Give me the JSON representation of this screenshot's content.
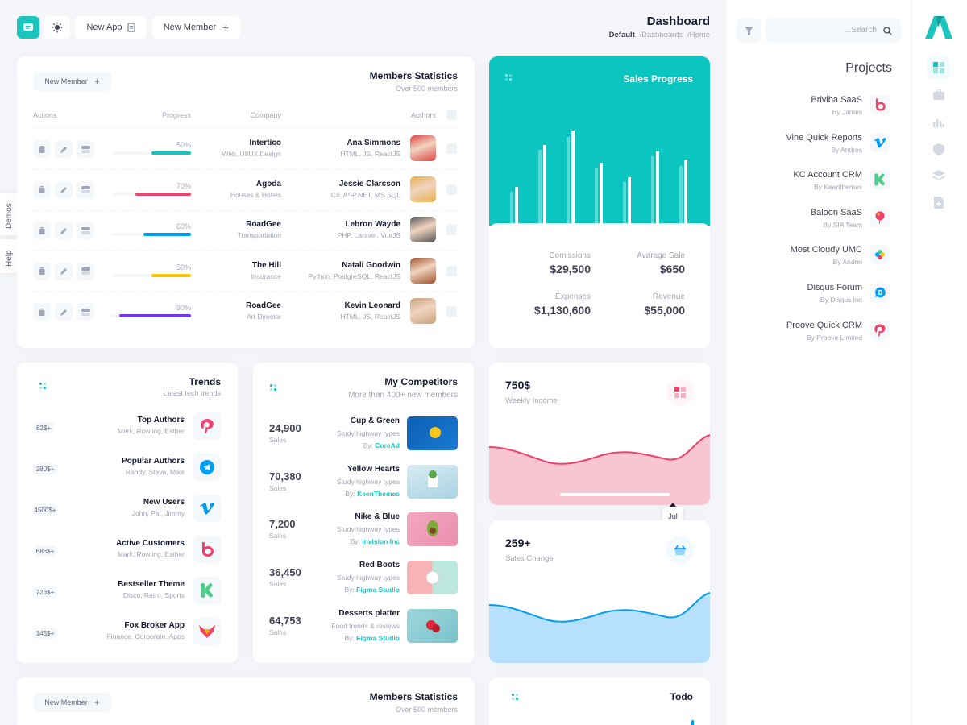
{
  "toolbar": {
    "new_app": "New App",
    "new_member": "New Member"
  },
  "page": {
    "title": "Dashboard",
    "breadcrumb": [
      "Default",
      "/Dashboards",
      "/Home"
    ]
  },
  "side_tabs": {
    "demos": "Demos",
    "help": "Help"
  },
  "members": {
    "title": "Members Statistics",
    "subtitle": "Over 500 members",
    "new_member": "New Member",
    "headers": {
      "actions": "Actions",
      "progress": "Progress",
      "company": "Company",
      "authors": "Authors"
    },
    "rows": [
      {
        "progress": "50%",
        "company": "Intertico",
        "company_sub": "Web, UI/UX Design",
        "author": "Ana Simmons",
        "skills": "HTML, JS, ReactJS",
        "color": "#1bc5bd",
        "fraction": 0.5
      },
      {
        "progress": "70%",
        "company": "Agoda",
        "company_sub": "Houses & Hotels",
        "author": "Jessie Clarcson",
        "skills": "C#, ASP.NET, MS SQL",
        "color": "#f1416c",
        "fraction": 0.7
      },
      {
        "progress": "60%",
        "company": "RoadGee",
        "company_sub": "Transportation",
        "author": "Lebron Wayde",
        "skills": "PHP, Laravel, VueJS",
        "color": "#009ef7",
        "fraction": 0.6
      },
      {
        "progress": "50%",
        "company": "The Hill",
        "company_sub": "Insurance",
        "author": "Natali Goodwin",
        "skills": "Python, PostgreSQL, ReactJS",
        "color": "#ffc700",
        "fraction": 0.5
      },
      {
        "progress": "90%",
        "company": "RoadGee",
        "company_sub": "Art Director",
        "author": "Kevin Leonard",
        "skills": "HTML, JS, ReactJS",
        "color": "#7239ea",
        "fraction": 0.9
      }
    ]
  },
  "members2": {
    "title": "Members Statistics",
    "subtitle": "Over 500 members",
    "new_member": "New Member"
  },
  "sales": {
    "title": "Sales Progress",
    "stats": [
      {
        "label": "Comissions",
        "value": "$29,500"
      },
      {
        "label": "Avarage Sale",
        "value": "$650"
      },
      {
        "label": "Expenses",
        "value": "$1,130,600"
      },
      {
        "label": "Revenue",
        "value": "$55,000"
      }
    ]
  },
  "trends": {
    "title": "Trends",
    "subtitle": "Latest tech trends",
    "items": [
      {
        "badge": "82$+",
        "name": "Top Authors",
        "desc": "Mark, Rowling, Esther",
        "icon": "pinterest-icon"
      },
      {
        "badge": "280$+",
        "name": "Popular Authors",
        "desc": "Randy, Steve, Mike",
        "icon": "telegram-icon"
      },
      {
        "badge": "4500$+",
        "name": "New Users",
        "desc": "John, Pat, Jimmy",
        "icon": "vimeo-icon"
      },
      {
        "badge": "686$+",
        "name": "Active Customers",
        "desc": "Mark, Rowling, Esther",
        "icon": "bebo-icon"
      },
      {
        "badge": "726$+",
        "name": "Bestseller Theme",
        "desc": "Disco, Retro, Sports",
        "icon": "kickstarter-icon"
      },
      {
        "badge": "145$+",
        "name": "Fox Broker App",
        "desc": "Finance, Corporate, Apps",
        "icon": "fox-icon"
      }
    ]
  },
  "competitors": {
    "title": "My Competitors",
    "subtitle": "More than 400+ new members",
    "sales_label": "Sales",
    "items": [
      {
        "value": "24,900",
        "name": "Cup & Green",
        "desc": "Study highway types",
        "by": "By:",
        "author": "CoreAd"
      },
      {
        "value": "70,380",
        "name": "Yellow Hearts",
        "desc": "Study highway types",
        "by": "By:",
        "author": "KeenThemes"
      },
      {
        "value": "7,200",
        "name": "Nike & Blue",
        "desc": "Study highway types",
        "by": ".By:",
        "author": "Invision Inc"
      },
      {
        "value": "36,450",
        "name": "Red Boots",
        "desc": "Study highway types",
        "by": "By:",
        "author": "Figma Studio"
      },
      {
        "value": "64,753",
        "name": "Desserts platter",
        "desc": "Food trends & reviews",
        "by": "By:",
        "author": "Figma Studio"
      }
    ]
  },
  "income": {
    "value": "750$",
    "label": "Weekly Income",
    "tooltip": "Jul"
  },
  "change": {
    "value": "259+",
    "label": "Sales Change"
  },
  "todo": {
    "title": "Todo"
  },
  "search": {
    "placeholder": "...Search"
  },
  "projects": {
    "title": "Projects",
    "items": [
      {
        "name": "Briviba SaaS",
        "by": "By James",
        "icon": "bebo-icon"
      },
      {
        "name": "Vine Quick Reports",
        "by": "By Andres",
        "icon": "vimeo-icon"
      },
      {
        "name": "KC Account CRM",
        "by": "By Keenthemes",
        "icon": "kickstarter-icon"
      },
      {
        "name": "Baloon SaaS",
        "by": "By SIA Team",
        "icon": "balloon-icon"
      },
      {
        "name": "Most Cloudy UMC",
        "by": "By Andrei",
        "icon": "slack-icon"
      },
      {
        "name": "Disqus Forum",
        "by": ".By Disqus Inc",
        "icon": "disqus-icon"
      },
      {
        "name": "Proove Quick CRM",
        "by": "By Proove Limited",
        "icon": "pinterest-icon"
      }
    ]
  },
  "colors": {
    "teal": "#0bc5c0",
    "brand": "#1bc5bd",
    "pink": "#f1416c",
    "blue": "#009ef7"
  }
}
